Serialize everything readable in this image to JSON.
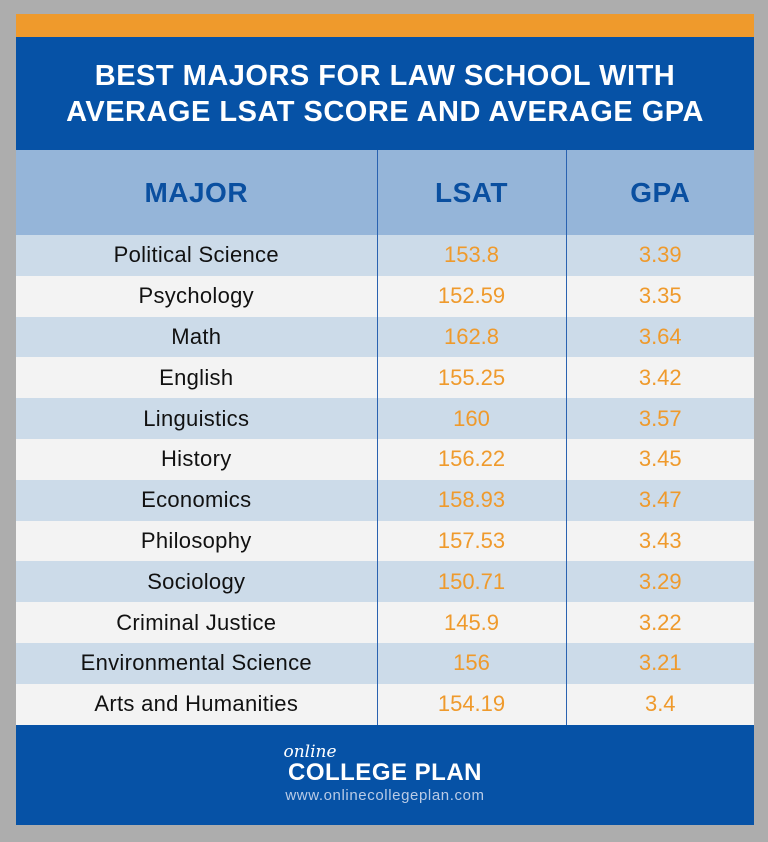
{
  "title": {
    "line1": "BEST MAJORS FOR LAW SCHOOL WITH",
    "line2": "AVERAGE LSAT SCORE AND AVERAGE GPA"
  },
  "colors": {
    "accent_orange": "#ef9a2c",
    "brand_blue": "#0652a6",
    "header_blue": "#95b5d9",
    "row_alt": "#ccdbe9",
    "row_plain": "#f3f3f3",
    "background": "#adadad"
  },
  "table": {
    "headers": [
      "MAJOR",
      "LSAT",
      "GPA"
    ],
    "rows": [
      {
        "major": "Political Science",
        "lsat": "153.8",
        "gpa": "3.39"
      },
      {
        "major": "Psychology",
        "lsat": "152.59",
        "gpa": "3.35"
      },
      {
        "major": "Math",
        "lsat": "162.8",
        "gpa": "3.64"
      },
      {
        "major": "English",
        "lsat": "155.25",
        "gpa": "3.42"
      },
      {
        "major": "Linguistics",
        "lsat": "160",
        "gpa": "3.57"
      },
      {
        "major": "History",
        "lsat": "156.22",
        "gpa": "3.45"
      },
      {
        "major": "Economics",
        "lsat": "158.93",
        "gpa": "3.47"
      },
      {
        "major": "Philosophy",
        "lsat": "157.53",
        "gpa": "3.43"
      },
      {
        "major": "Sociology",
        "lsat": "150.71",
        "gpa": "3.29"
      },
      {
        "major": "Criminal Justice",
        "lsat": "145.9",
        "gpa": "3.22"
      },
      {
        "major": "Environmental Science",
        "lsat": "156",
        "gpa": "3.21"
      },
      {
        "major": "Arts and Humanities",
        "lsat": "154.19",
        "gpa": "3.4"
      }
    ]
  },
  "footer": {
    "logo_script": "online",
    "logo_main": "COLLEGE PLAN",
    "url": "www.onlinecollegeplan.com"
  }
}
